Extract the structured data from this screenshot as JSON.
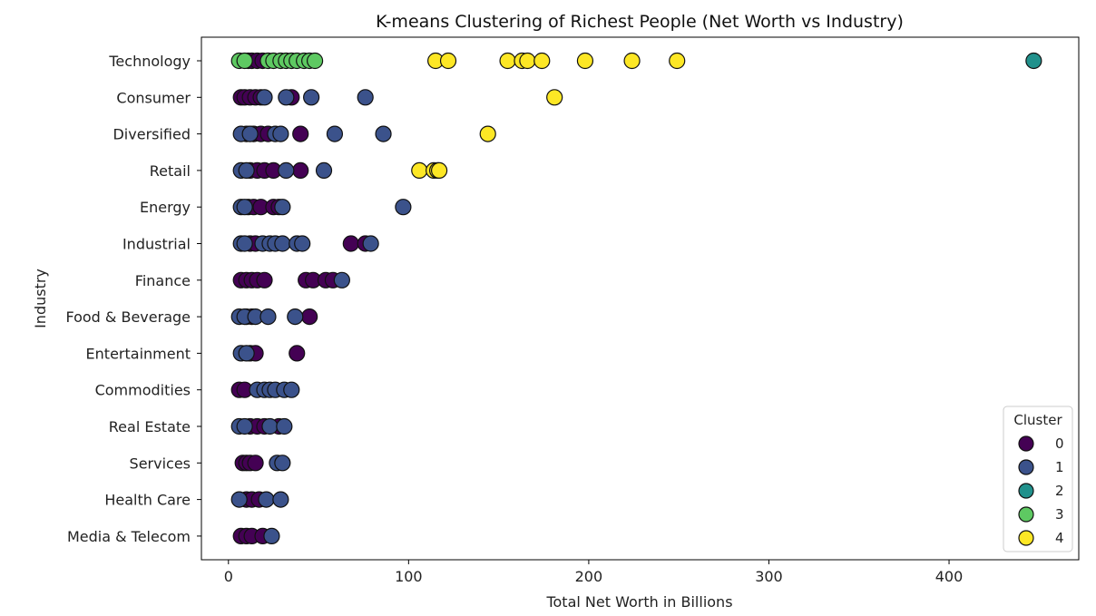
{
  "chart_data": {
    "type": "scatter",
    "title": "K-means Clustering of Richest People (Net Worth vs Industry)",
    "xlabel": "Total Net Worth in Billions",
    "ylabel": "Industry",
    "xlim": [
      -15,
      472
    ],
    "xticks": [
      0,
      100,
      200,
      300,
      400
    ],
    "grid": false,
    "categories": [
      "Technology",
      "Consumer",
      "Diversified",
      "Retail",
      "Energy",
      "Industrial",
      "Finance",
      "Food & Beverage",
      "Entertainment",
      "Commodities",
      "Real Estate",
      "Services",
      "Health Care",
      "Media & Telecom"
    ],
    "legend": {
      "title": "Cluster",
      "placement": "lower right",
      "labels": [
        "0",
        "1",
        "2",
        "3",
        "4"
      ]
    },
    "colors": [
      "#440154",
      "#3b528b",
      "#21918c",
      "#5ec962",
      "#fde725"
    ],
    "edge_color": "#111111",
    "series": [
      {
        "name": "0",
        "points": [
          [
            "Technology",
            11
          ],
          [
            "Technology",
            13
          ],
          [
            "Technology",
            16
          ],
          [
            "Technology",
            19
          ],
          [
            "Consumer",
            7
          ],
          [
            "Consumer",
            9
          ],
          [
            "Consumer",
            12
          ],
          [
            "Consumer",
            15
          ],
          [
            "Consumer",
            18
          ],
          [
            "Consumer",
            35
          ],
          [
            "Diversified",
            10
          ],
          [
            "Diversified",
            14
          ],
          [
            "Diversified",
            18
          ],
          [
            "Diversified",
            22
          ],
          [
            "Diversified",
            40
          ],
          [
            "Retail",
            12
          ],
          [
            "Retail",
            16
          ],
          [
            "Retail",
            20
          ],
          [
            "Retail",
            25
          ],
          [
            "Retail",
            40
          ],
          [
            "Energy",
            11
          ],
          [
            "Energy",
            14
          ],
          [
            "Energy",
            18
          ],
          [
            "Energy",
            25
          ],
          [
            "Energy",
            28
          ],
          [
            "Industrial",
            12
          ],
          [
            "Industrial",
            15
          ],
          [
            "Industrial",
            68
          ],
          [
            "Industrial",
            76
          ],
          [
            "Finance",
            7
          ],
          [
            "Finance",
            10
          ],
          [
            "Finance",
            13
          ],
          [
            "Finance",
            16
          ],
          [
            "Finance",
            20
          ],
          [
            "Finance",
            43
          ],
          [
            "Finance",
            47
          ],
          [
            "Finance",
            54
          ],
          [
            "Finance",
            58
          ],
          [
            "Food & Beverage",
            10
          ],
          [
            "Food & Beverage",
            13
          ],
          [
            "Food & Beverage",
            45
          ],
          [
            "Entertainment",
            12
          ],
          [
            "Entertainment",
            15
          ],
          [
            "Entertainment",
            38
          ],
          [
            "Commodities",
            6
          ],
          [
            "Commodities",
            9
          ],
          [
            "Real Estate",
            12
          ],
          [
            "Real Estate",
            16
          ],
          [
            "Real Estate",
            20
          ],
          [
            "Real Estate",
            28
          ],
          [
            "Services",
            8
          ],
          [
            "Services",
            10
          ],
          [
            "Services",
            12
          ],
          [
            "Services",
            15
          ],
          [
            "Health Care",
            10
          ],
          [
            "Health Care",
            13
          ],
          [
            "Health Care",
            17
          ],
          [
            "Media & Telecom",
            7
          ],
          [
            "Media & Telecom",
            10
          ],
          [
            "Media & Telecom",
            13
          ],
          [
            "Media & Telecom",
            19
          ]
        ]
      },
      {
        "name": "1",
        "points": [
          [
            "Consumer",
            20
          ],
          [
            "Consumer",
            32
          ],
          [
            "Consumer",
            46
          ],
          [
            "Consumer",
            76
          ],
          [
            "Diversified",
            7
          ],
          [
            "Diversified",
            12
          ],
          [
            "Diversified",
            26
          ],
          [
            "Diversified",
            29
          ],
          [
            "Diversified",
            59
          ],
          [
            "Diversified",
            86
          ],
          [
            "Retail",
            7
          ],
          [
            "Retail",
            10
          ],
          [
            "Retail",
            32
          ],
          [
            "Retail",
            53
          ],
          [
            "Energy",
            7
          ],
          [
            "Energy",
            9
          ],
          [
            "Energy",
            30
          ],
          [
            "Energy",
            97
          ],
          [
            "Industrial",
            7
          ],
          [
            "Industrial",
            9
          ],
          [
            "Industrial",
            19
          ],
          [
            "Industrial",
            23
          ],
          [
            "Industrial",
            26
          ],
          [
            "Industrial",
            30
          ],
          [
            "Industrial",
            38
          ],
          [
            "Industrial",
            41
          ],
          [
            "Industrial",
            79
          ],
          [
            "Finance",
            63
          ],
          [
            "Food & Beverage",
            6
          ],
          [
            "Food & Beverage",
            9
          ],
          [
            "Food & Beverage",
            15
          ],
          [
            "Food & Beverage",
            22
          ],
          [
            "Food & Beverage",
            37
          ],
          [
            "Entertainment",
            7
          ],
          [
            "Entertainment",
            10
          ],
          [
            "Commodities",
            16
          ],
          [
            "Commodities",
            20
          ],
          [
            "Commodities",
            23
          ],
          [
            "Commodities",
            26
          ],
          [
            "Commodities",
            31
          ],
          [
            "Commodities",
            35
          ],
          [
            "Real Estate",
            6
          ],
          [
            "Real Estate",
            9
          ],
          [
            "Real Estate",
            23
          ],
          [
            "Real Estate",
            31
          ],
          [
            "Services",
            27
          ],
          [
            "Services",
            30
          ],
          [
            "Health Care",
            6
          ],
          [
            "Health Care",
            21
          ],
          [
            "Health Care",
            29
          ],
          [
            "Media & Telecom",
            24
          ]
        ]
      },
      {
        "name": "2",
        "points": [
          [
            "Technology",
            447
          ]
        ]
      },
      {
        "name": "3",
        "points": [
          [
            "Technology",
            6
          ],
          [
            "Technology",
            9
          ],
          [
            "Technology",
            22
          ],
          [
            "Technology",
            25
          ],
          [
            "Technology",
            29
          ],
          [
            "Technology",
            32
          ],
          [
            "Technology",
            35
          ],
          [
            "Technology",
            38
          ],
          [
            "Technology",
            42
          ],
          [
            "Technology",
            45
          ],
          [
            "Technology",
            48
          ]
        ]
      },
      {
        "name": "4",
        "points": [
          [
            "Technology",
            115
          ],
          [
            "Technology",
            122
          ],
          [
            "Technology",
            155
          ],
          [
            "Technology",
            163
          ],
          [
            "Technology",
            166
          ],
          [
            "Technology",
            174
          ],
          [
            "Technology",
            198
          ],
          [
            "Technology",
            224
          ],
          [
            "Technology",
            249
          ],
          [
            "Consumer",
            181
          ],
          [
            "Diversified",
            144
          ],
          [
            "Retail",
            106
          ],
          [
            "Retail",
            114
          ],
          [
            "Retail",
            116
          ],
          [
            "Retail",
            117
          ]
        ]
      }
    ]
  }
}
